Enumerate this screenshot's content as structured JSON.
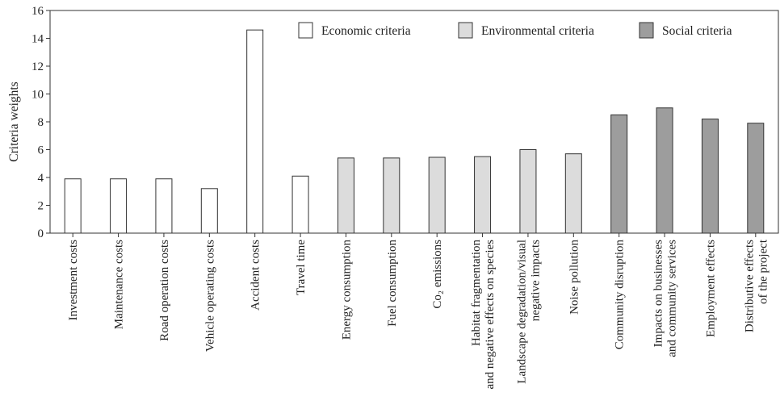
{
  "chart_data": {
    "type": "bar",
    "title": "",
    "xlabel": "",
    "ylabel": "Criteria weights",
    "ylim": [
      0,
      16
    ],
    "yticks": [
      0,
      2,
      4,
      6,
      8,
      10,
      12,
      14,
      16
    ],
    "grid": false,
    "legend_position": "top-right",
    "legend": [
      {
        "label": "Economic criteria",
        "color": "#ffffff"
      },
      {
        "label": "Environmental criteria",
        "color": "#dcdcdc"
      },
      {
        "label": "Social criteria",
        "color": "#9d9d9d"
      }
    ],
    "bars": [
      {
        "label": [
          "Investment costs"
        ],
        "value": 3.9,
        "group": 0
      },
      {
        "label": [
          "Maintenance costs"
        ],
        "value": 3.9,
        "group": 0
      },
      {
        "label": [
          "Road operation costs"
        ],
        "value": 3.9,
        "group": 0
      },
      {
        "label": [
          "Vehicle operating costs"
        ],
        "value": 3.2,
        "group": 0
      },
      {
        "label": [
          "Accident costs"
        ],
        "value": 14.6,
        "group": 0
      },
      {
        "label": [
          "Travel time"
        ],
        "value": 4.1,
        "group": 0
      },
      {
        "label": [
          "Energy consumption"
        ],
        "value": 5.4,
        "group": 1
      },
      {
        "label": [
          "Fuel consumption"
        ],
        "value": 5.4,
        "group": 1
      },
      {
        "label": [
          "Co₂ emissions"
        ],
        "value": 5.45,
        "group": 1
      },
      {
        "label": [
          "Habitat fragmentation",
          "and negative effects on species"
        ],
        "value": 5.5,
        "group": 1
      },
      {
        "label": [
          "Landscape degradation/visual",
          "negative impacts"
        ],
        "value": 6.0,
        "group": 1
      },
      {
        "label": [
          "Noise pollution"
        ],
        "value": 5.7,
        "group": 1
      },
      {
        "label": [
          "Community disruption"
        ],
        "value": 8.5,
        "group": 2
      },
      {
        "label": [
          "Impacts on businesses",
          "and community services"
        ],
        "value": 9.0,
        "group": 2
      },
      {
        "label": [
          "Employment effects"
        ],
        "value": 8.2,
        "group": 2
      },
      {
        "label": [
          "Distributive effects",
          "of the project"
        ],
        "value": 7.9,
        "group": 2
      }
    ]
  }
}
